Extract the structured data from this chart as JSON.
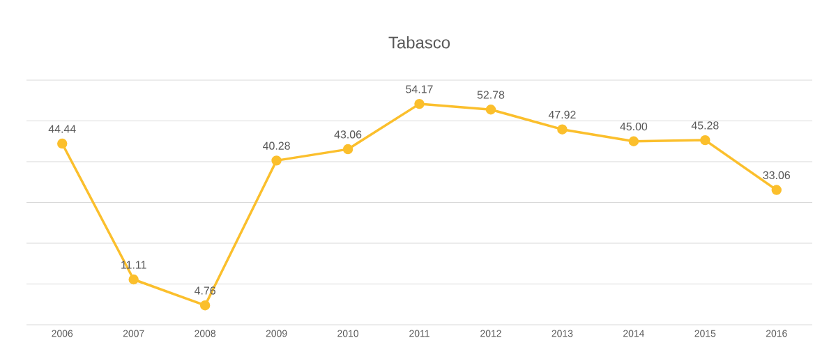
{
  "chart_data": {
    "type": "line",
    "title": "Tabasco",
    "categories": [
      "2006",
      "2007",
      "2008",
      "2009",
      "2010",
      "2011",
      "2012",
      "2013",
      "2014",
      "2015",
      "2016"
    ],
    "values": [
      44.44,
      11.11,
      4.76,
      40.28,
      43.06,
      54.17,
      52.78,
      47.92,
      45.0,
      45.28,
      33.06
    ],
    "value_labels": [
      "44.44",
      "11.11",
      "4.76",
      "40.28",
      "43.06",
      "54.17",
      "52.78",
      "47.92",
      "45.00",
      "45.28",
      "33.06"
    ],
    "color": "#fbbf2c",
    "marker": "circle",
    "line_style": "solid",
    "grid": "y",
    "tick_labels": "x",
    "ylim": [
      0,
      60
    ],
    "yticks": [
      {
        "value": 0,
        "label": null
      },
      {
        "value": 10,
        "label": null
      },
      {
        "value": 20,
        "label": null
      },
      {
        "value": 30,
        "label": null
      },
      {
        "value": 40,
        "label": null
      },
      {
        "value": 50,
        "label": null
      },
      {
        "value": 60,
        "label": null
      }
    ]
  }
}
